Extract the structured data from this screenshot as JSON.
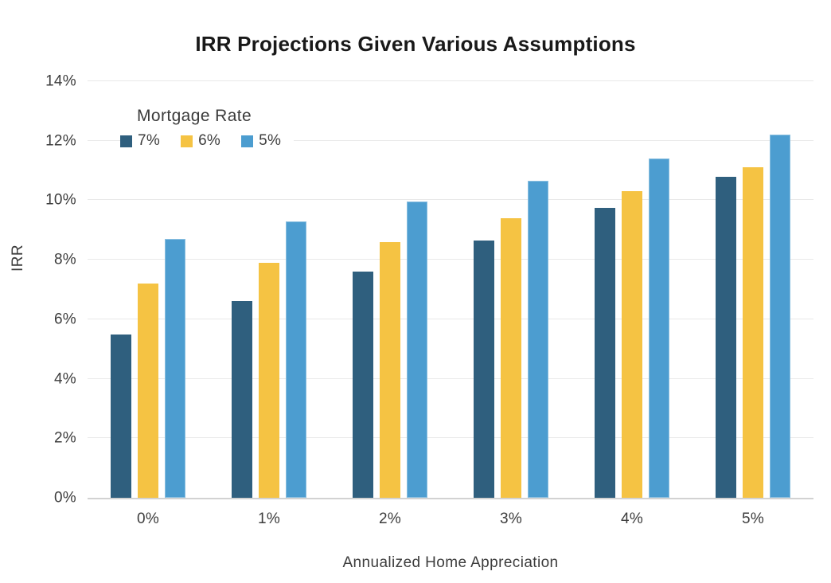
{
  "chart": {
    "title": "IRR Projections Given Various Assumptions",
    "legend_title": "Mortgage Rate",
    "xlabel": "Annualized Home Appreciation",
    "ylabel": "IRR"
  },
  "chart_data": {
    "type": "bar",
    "title": "IRR Projections Given Various Assumptions",
    "xlabel": "Annualized Home Appreciation",
    "ylabel": "IRR",
    "categories": [
      "0%",
      "1%",
      "2%",
      "3%",
      "4%",
      "5%"
    ],
    "series": [
      {
        "name": "7%",
        "color": "#2F5F7E",
        "values": [
          5.5,
          6.6,
          7.6,
          8.65,
          9.75,
          10.8
        ]
      },
      {
        "name": "6%",
        "color": "#F5C343",
        "values": [
          7.2,
          7.9,
          8.6,
          9.4,
          10.3,
          11.1
        ]
      },
      {
        "name": "5%",
        "color": "#4C9DD0",
        "values": [
          8.7,
          9.3,
          9.95,
          10.65,
          11.4,
          12.2
        ]
      }
    ],
    "ylim": [
      0,
      14
    ],
    "ytick_step": 2,
    "ytick_suffix": "%",
    "grid": "horizontal",
    "gridline_color": "#e9e9e9",
    "axis_line_color": "#d2d2d2",
    "legend_title": "Mortgage Rate",
    "legend_position": "top-left-inside",
    "background_color": "#ffffff"
  }
}
